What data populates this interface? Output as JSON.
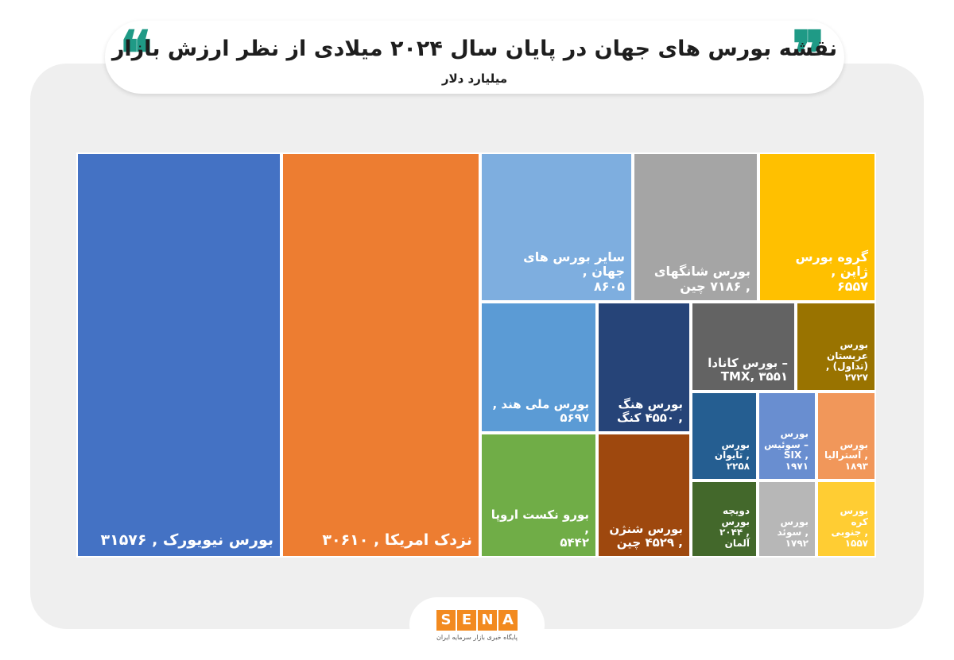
{
  "header": {
    "title": "نقشه بورس های جهان در پایان سال ۲۰۲۴ میلادی از نظر ارزش بازار",
    "unit": "میلیارد دلار",
    "quote_left": "❝",
    "quote_right": "❞"
  },
  "footer": {
    "logo_letters": [
      "S",
      "E",
      "N",
      "A"
    ],
    "logo_subtitle": "پایگاه خبری بازار سرمایه ایران"
  },
  "colors": {
    "accent": "#1f9a86",
    "card": "#efefef",
    "logo": "#f28a1f"
  },
  "chart_data": {
    "type": "treemap",
    "title": "نقشه بورس های جهان در پایان سال ۲۰۲۴ میلادی از نظر ارزش بازار",
    "unit": "میلیارد دلار",
    "items": [
      {
        "label": "بورس نیویورک , ۳۱۵۷۶",
        "value": 31576,
        "color": "#4472c4"
      },
      {
        "label": "نزدک امریکا , ۳۰۶۱۰",
        "value": 30610,
        "color": "#ed7d31"
      },
      {
        "label": "سایر بورس های جهان ,\n۸۶۰۵",
        "value": 8605,
        "color": "#7eaedf"
      },
      {
        "label": "بورس شانگهای\n, ۷۱۸۶ چین",
        "value": 7186,
        "color": "#a5a5a5"
      },
      {
        "label": "گروه بورس ژاپن ,\n۶۵۵۷",
        "value": 6557,
        "color": "#ffc000"
      },
      {
        "label": "بورس ملی هند ,\n۵۶۹۷",
        "value": 5697,
        "color": "#5b9bd5"
      },
      {
        "label": "بورو نکست اروپا ,\n۵۴۴۲",
        "value": 5442,
        "color": "#70ad47"
      },
      {
        "label": "بورس هنگ\n, ۴۵۵۰ کنگ",
        "value": 4550,
        "color": "#264478"
      },
      {
        "label": "بورس شنژن\n, ۴۵۲۹ چین",
        "value": 4529,
        "color": "#9e480e"
      },
      {
        "label": "– بورس کانادا\nTMX, ۳۵۵۱",
        "value": 3551,
        "color": "#636363"
      },
      {
        "label": "بورس عربستان\n(تداول) , ۲۷۲۷",
        "value": 2727,
        "color": "#997300"
      },
      {
        "label": "بورس\n, تایوان\n۲۲۵۸",
        "value": 2258,
        "color": "#255e91"
      },
      {
        "label": "بورس\n– سوئیس\n, SIX\n۱۹۷۱",
        "value": 1971,
        "color": "#698ed0"
      },
      {
        "label": "بورس\n, استرالیا\n۱۸۹۳",
        "value": 1893,
        "color": "#f1975a"
      },
      {
        "label": "دویچه بورس\n, ۲۰۴۴ آلمان",
        "value": 2044,
        "color": "#43682b"
      },
      {
        "label": "بورس\n, سوئد\n۱۷۹۲",
        "value": 1792,
        "color": "#b7b7b7"
      },
      {
        "label": "بورس\nکره\n, جنوبی\n۱۵۵۷",
        "value": 1557,
        "color": "#ffcd33"
      }
    ]
  }
}
